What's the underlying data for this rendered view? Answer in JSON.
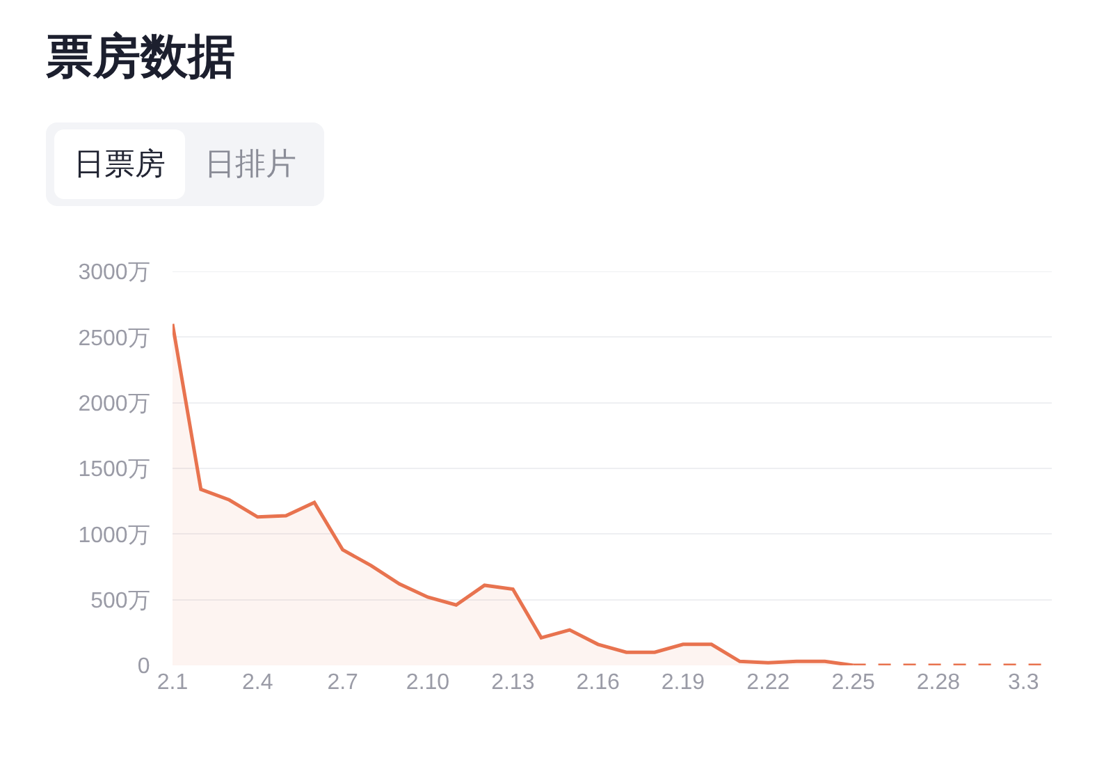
{
  "chart_data": {
    "type": "line",
    "title": "票房数据",
    "annotations": [
      "日票房",
      "日排片"
    ],
    "categories": [
      "2.1",
      null,
      null,
      "2.4",
      null,
      null,
      "2.7",
      null,
      null,
      "2.10",
      null,
      null,
      "2.13",
      null,
      null,
      "2.16",
      null,
      null,
      "2.19",
      null,
      null,
      "2.22",
      null,
      null,
      "2.25",
      null,
      null,
      "2.28",
      null,
      null,
      "3.3",
      null
    ],
    "series": [
      {
        "type": "area",
        "color": "#e8734f",
        "line_style": "solid",
        "values": [
          2600,
          1340,
          1260,
          1130,
          1140,
          1240,
          880,
          760,
          620,
          520,
          460,
          610,
          580,
          210,
          270,
          160,
          100,
          100,
          160,
          160,
          30,
          20,
          30,
          30,
          0,
          null,
          null,
          null,
          null,
          null,
          null,
          null
        ]
      },
      {
        "type": "line",
        "color": "#e8734f",
        "line_style": "dashed",
        "values": [
          null,
          null,
          null,
          null,
          null,
          null,
          null,
          null,
          null,
          null,
          null,
          null,
          null,
          null,
          null,
          null,
          null,
          null,
          null,
          null,
          null,
          null,
          null,
          null,
          0,
          0,
          0,
          0,
          0,
          0,
          0,
          0
        ]
      }
    ],
    "ylim": [
      0,
      3000
    ],
    "yticks": [
      0,
      {
        "value": 500,
        "label": "500万"
      },
      {
        "value": 1000,
        "label": "1000万"
      },
      {
        "value": 1500,
        "label": "1500万"
      },
      {
        "value": 2000,
        "label": "2000万"
      },
      {
        "value": 2500,
        "label": "2500万"
      },
      {
        "value": 3000,
        "label": "3000万"
      }
    ],
    "grid": "y",
    "marker": "none"
  }
}
